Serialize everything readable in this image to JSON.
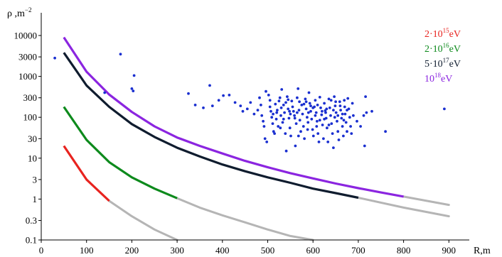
{
  "chart_data": {
    "type": "line",
    "ylabel": "ρ ,m",
    "ylabel_exponent": "−2",
    "xlabel": "R,m",
    "y_scale": "log",
    "x_ticks": [
      "0",
      "100",
      "200",
      "300",
      "400",
      "500",
      "600",
      "700",
      "800",
      "900"
    ],
    "y_ticks": [
      "10000",
      "3000",
      "1000",
      "300",
      "100",
      "30",
      "10",
      "3",
      "1",
      "0.3",
      "0.1"
    ],
    "xlim": [
      0,
      1000
    ],
    "ylim": [
      0.1,
      15000
    ],
    "grid": false,
    "legend_position": "top-right",
    "series": [
      {
        "name": "2·10",
        "name_exponent": "15",
        "name_unit": "eV",
        "color": "#e8231f",
        "x": [
          50,
          100,
          150
        ],
        "y": [
          20,
          3,
          0.9
        ],
        "extrapolation": {
          "color": "#b5b5b5",
          "x": [
            150,
            200,
            250,
            300
          ],
          "y": [
            0.9,
            0.38,
            0.18,
            0.1
          ]
        }
      },
      {
        "name": "2·10",
        "name_exponent": "16",
        "name_unit": "eV",
        "color": "#0d8a1c",
        "x": [
          50,
          100,
          150,
          200,
          250,
          300
        ],
        "y": [
          180,
          28,
          8,
          3.4,
          1.8,
          1.05
        ],
        "extrapolation": {
          "color": "#b5b5b5",
          "x": [
            300,
            350,
            400,
            450,
            500,
            550,
            600
          ],
          "y": [
            1.05,
            0.62,
            0.4,
            0.27,
            0.18,
            0.125,
            0.1
          ]
        }
      },
      {
        "name": "5·10",
        "name_exponent": "17",
        "name_unit": "eV",
        "color": "#0f1c2e",
        "x": [
          50,
          100,
          150,
          200,
          250,
          300,
          350,
          400,
          450,
          500,
          550,
          600,
          650,
          700
        ],
        "y": [
          3800,
          600,
          180,
          68,
          33,
          18,
          11,
          7,
          4.8,
          3.4,
          2.5,
          1.8,
          1.4,
          1.08
        ],
        "extrapolation": {
          "color": "#b5b5b5",
          "x": [
            700,
            800,
            900
          ],
          "y": [
            1.08,
            0.62,
            0.38
          ]
        }
      },
      {
        "name": "10",
        "name_exponent": "18",
        "name_unit": "eV",
        "color": "#8b25e0",
        "x": [
          50,
          100,
          150,
          200,
          250,
          300,
          350,
          400,
          450,
          500,
          550,
          600,
          650,
          700,
          750,
          800
        ],
        "y": [
          9000,
          1300,
          360,
          135,
          60,
          32,
          20,
          13,
          8.6,
          6,
          4.3,
          3.2,
          2.4,
          1.85,
          1.45,
          1.15
        ],
        "extrapolation": {
          "color": "#b5b5b5",
          "x": [
            800,
            900
          ],
          "y": [
            1.15,
            0.72
          ]
        }
      }
    ],
    "scatter": {
      "color": "#1a2fd0",
      "points": [
        [
          30,
          2800
        ],
        [
          175,
          3500
        ],
        [
          200,
          500
        ],
        [
          203,
          440
        ],
        [
          205,
          1050
        ],
        [
          140,
          400
        ],
        [
          325,
          380
        ],
        [
          340,
          200
        ],
        [
          358,
          170
        ],
        [
          372,
          600
        ],
        [
          378,
          190
        ],
        [
          392,
          260
        ],
        [
          402,
          340
        ],
        [
          415,
          350
        ],
        [
          428,
          230
        ],
        [
          440,
          190
        ],
        [
          445,
          140
        ],
        [
          455,
          160
        ],
        [
          462,
          230
        ],
        [
          470,
          120
        ],
        [
          478,
          150
        ],
        [
          482,
          300
        ],
        [
          485,
          200
        ],
        [
          487,
          110
        ],
        [
          490,
          80
        ],
        [
          492,
          60
        ],
        [
          494,
          30
        ],
        [
          496,
          430
        ],
        [
          498,
          25
        ],
        [
          502,
          350
        ],
        [
          505,
          180
        ],
        [
          507,
          140
        ],
        [
          509,
          100
        ],
        [
          511,
          70
        ],
        [
          513,
          45
        ],
        [
          515,
          40
        ],
        [
          517,
          210
        ],
        [
          519,
          90
        ],
        [
          521,
          150
        ],
        [
          523,
          60
        ],
        [
          525,
          250
        ],
        [
          527,
          300
        ],
        [
          529,
          110
        ],
        [
          531,
          480
        ],
        [
          533,
          75
        ],
        [
          535,
          200
        ],
        [
          537,
          130
        ],
        [
          539,
          40
        ],
        [
          541,
          15
        ],
        [
          543,
          320
        ],
        [
          545,
          160
        ],
        [
          547,
          95
        ],
        [
          549,
          55
        ],
        [
          551,
          35
        ],
        [
          553,
          250
        ],
        [
          555,
          180
        ],
        [
          557,
          140
        ],
        [
          559,
          110
        ],
        [
          561,
          20
        ],
        [
          563,
          70
        ],
        [
          565,
          300
        ],
        [
          567,
          500
        ],
        [
          569,
          150
        ],
        [
          571,
          85
        ],
        [
          573,
          45
        ],
        [
          575,
          200
        ],
        [
          577,
          120
        ],
        [
          579,
          60
        ],
        [
          581,
          30
        ],
        [
          583,
          280
        ],
        [
          585,
          160
        ],
        [
          587,
          100
        ],
        [
          589,
          75
        ],
        [
          591,
          400
        ],
        [
          593,
          220
        ],
        [
          595,
          140
        ],
        [
          597,
          90
        ],
        [
          599,
          50
        ],
        [
          601,
          35
        ],
        [
          603,
          180
        ],
        [
          605,
          260
        ],
        [
          607,
          130
        ],
        [
          609,
          80
        ],
        [
          611,
          40
        ],
        [
          613,
          25
        ],
        [
          615,
          310
        ],
        [
          617,
          170
        ],
        [
          619,
          115
        ],
        [
          621,
          65
        ],
        [
          623,
          30
        ],
        [
          625,
          220
        ],
        [
          627,
          145
        ],
        [
          629,
          95
        ],
        [
          631,
          55
        ],
        [
          633,
          25
        ],
        [
          635,
          280
        ],
        [
          637,
          170
        ],
        [
          639,
          110
        ],
        [
          641,
          70
        ],
        [
          643,
          40
        ],
        [
          645,
          18
        ],
        [
          647,
          320
        ],
        [
          649,
          190
        ],
        [
          651,
          130
        ],
        [
          653,
          80
        ],
        [
          655,
          45
        ],
        [
          657,
          28
        ],
        [
          659,
          240
        ],
        [
          661,
          150
        ],
        [
          663,
          95
        ],
        [
          665,
          60
        ],
        [
          667,
          35
        ],
        [
          669,
          260
        ],
        [
          671,
          120
        ],
        [
          673,
          75
        ],
        [
          675,
          45
        ],
        [
          677,
          290
        ],
        [
          679,
          160
        ],
        [
          681,
          100
        ],
        [
          683,
          60
        ],
        [
          685,
          40
        ],
        [
          687,
          220
        ],
        [
          689,
          110
        ],
        [
          520,
          130
        ],
        [
          540,
          230
        ],
        [
          560,
          95
        ],
        [
          580,
          210
        ],
        [
          600,
          170
        ],
        [
          620,
          140
        ],
        [
          640,
          260
        ],
        [
          660,
          190
        ],
        [
          530,
          170
        ],
        [
          550,
          120
        ],
        [
          570,
          240
        ],
        [
          590,
          130
        ],
        [
          610,
          200
        ],
        [
          630,
          160
        ],
        [
          650,
          240
        ],
        [
          670,
          180
        ],
        [
          545,
          270
        ],
        [
          585,
          240
        ],
        [
          605,
          110
        ],
        [
          625,
          90
        ],
        [
          645,
          150
        ],
        [
          665,
          120
        ],
        [
          505,
          260
        ],
        [
          535,
          90
        ],
        [
          565,
          130
        ],
        [
          595,
          190
        ],
        [
          615,
          85
        ],
        [
          635,
          65
        ],
        [
          655,
          110
        ],
        [
          675,
          150
        ],
        [
          512,
          120
        ],
        [
          528,
          55
        ],
        [
          548,
          140
        ],
        [
          568,
          35
        ],
        [
          588,
          50
        ],
        [
          608,
          60
        ],
        [
          628,
          130
        ],
        [
          648,
          100
        ],
        [
          668,
          85
        ],
        [
          697,
          80
        ],
        [
          705,
          60
        ],
        [
          712,
          110
        ],
        [
          714,
          20
        ],
        [
          716,
          320
        ],
        [
          718,
          130
        ],
        [
          730,
          140
        ],
        [
          760,
          45
        ],
        [
          890,
          160
        ]
      ]
    }
  }
}
